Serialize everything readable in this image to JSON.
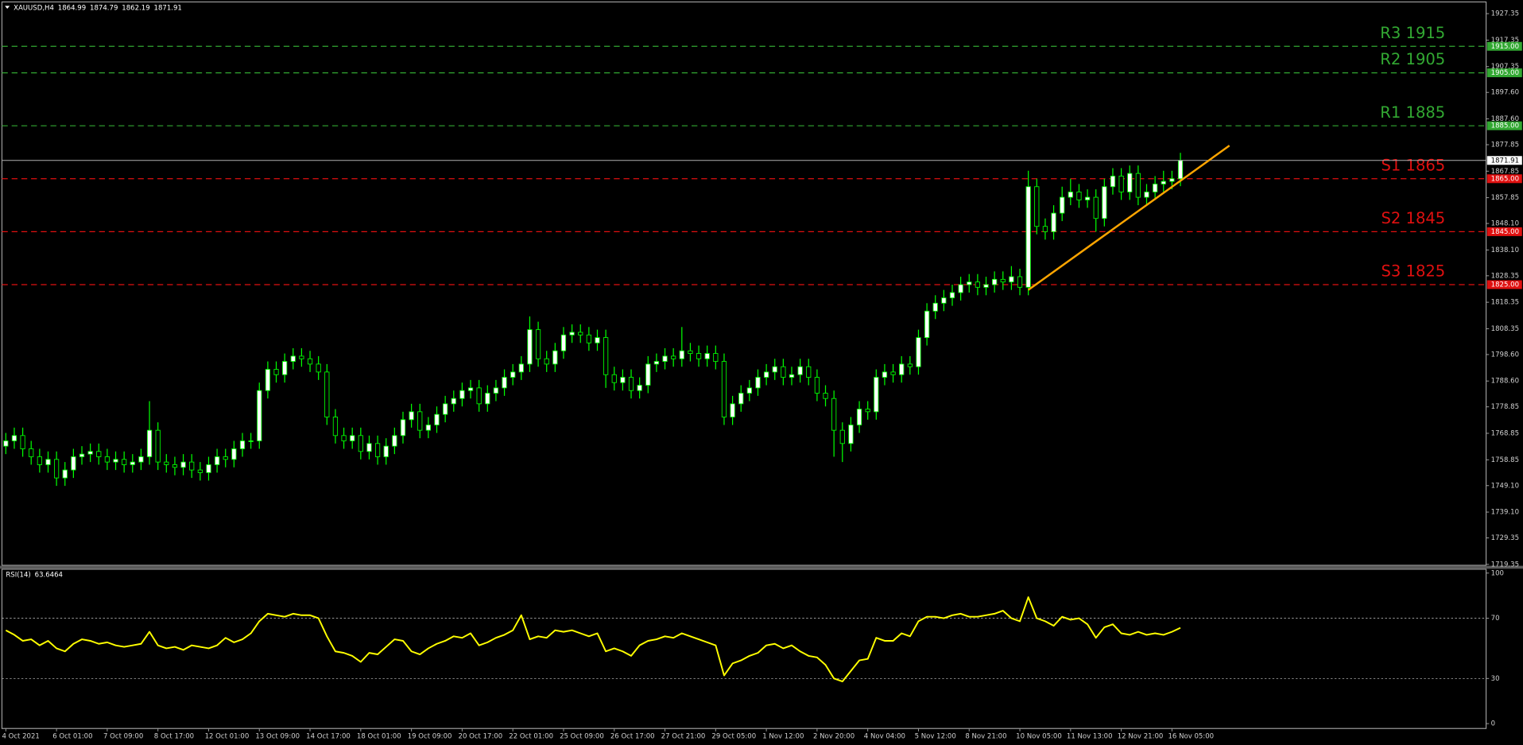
{
  "chart_data": [
    {
      "type": "candlestick",
      "title": "XAUUSD,H4",
      "categories": [
        "4 Oct 2021",
        null,
        null,
        null,
        null,
        null,
        "6 Oct 01:00",
        null,
        null,
        null,
        null,
        null,
        "7 Oct 09:00",
        null,
        null,
        null,
        null,
        null,
        "8 Oct 17:00",
        null,
        null,
        null,
        null,
        null,
        "12 Oct 01:00",
        null,
        null,
        null,
        null,
        null,
        "13 Oct 09:00",
        null,
        null,
        null,
        null,
        null,
        "14 Oct 17:00",
        null,
        null,
        null,
        null,
        null,
        "18 Oct 01:00",
        null,
        null,
        null,
        null,
        null,
        "19 Oct 09:00",
        null,
        null,
        null,
        null,
        null,
        "20 Oct 17:00",
        null,
        null,
        null,
        null,
        null,
        "22 Oct 01:00",
        null,
        null,
        null,
        null,
        null,
        "25 Oct 09:00",
        null,
        null,
        null,
        null,
        null,
        "26 Oct 17:00",
        null,
        null,
        null,
        null,
        null,
        "27 Oct 21:00",
        null,
        null,
        null,
        null,
        null,
        "29 Oct 05:00",
        null,
        null,
        null,
        null,
        null,
        "1 Nov 12:00",
        null,
        null,
        null,
        null,
        null,
        "2 Nov 20:00",
        null,
        null,
        null,
        null,
        null,
        "4 Nov 04:00",
        null,
        null,
        null,
        null,
        null,
        "5 Nov 12:00",
        null,
        null,
        null,
        null,
        null,
        "8 Nov 21:00",
        null,
        null,
        null,
        null,
        null,
        "10 Nov 05:00",
        null,
        null,
        null,
        null,
        null,
        "11 Nov 13:00",
        null,
        null,
        null,
        null,
        null,
        "12 Nov 21:00",
        null,
        null,
        null,
        null,
        null,
        "16 Nov 05:00",
        null
      ],
      "open": [
        1764,
        1766,
        1768,
        1763,
        1760,
        1757,
        1759,
        1752,
        1755,
        1760,
        1761,
        1762,
        1760,
        1758,
        1759,
        1757,
        1758,
        1760,
        1770,
        1758,
        1757,
        1756,
        1758,
        1755,
        1754,
        1757,
        1760,
        1759,
        1763,
        1766,
        1766,
        1785,
        1793,
        1791,
        1796,
        1798,
        1797,
        1795,
        1792,
        1775,
        1768,
        1766,
        1768,
        1762,
        1765,
        1760,
        1764,
        1768,
        1774,
        1777,
        1770,
        1772,
        1776,
        1780,
        1782,
        1785,
        1786,
        1780,
        1784,
        1786,
        1790,
        1792,
        1795,
        1808,
        1797,
        1795,
        1800,
        1806,
        1807,
        1806,
        1803,
        1805,
        1791,
        1788,
        1790,
        1785,
        1787,
        1795,
        1796,
        1798,
        1797,
        1800,
        1799,
        1797,
        1799,
        1796,
        1775,
        1780,
        1784,
        1786,
        1790,
        1792,
        1794,
        1790,
        1791,
        1794,
        1790,
        1784,
        1782,
        1770,
        1765,
        1772,
        1778,
        1777,
        1790,
        1792,
        1791,
        1795,
        1794,
        1805,
        1815,
        1818,
        1820,
        1822,
        1825,
        1826,
        1824,
        1825,
        1827,
        1826,
        1828,
        1824,
        1862,
        1847,
        1845,
        1852,
        1858,
        1860,
        1857,
        1858,
        1850,
        1862,
        1866,
        1860,
        1867,
        1858,
        1860,
        1863,
        1864,
        1864.99
      ],
      "high": [
        1769,
        1771,
        1771,
        1766,
        1763,
        1762,
        1762,
        1758,
        1763,
        1764,
        1765,
        1765,
        1763,
        1762,
        1762,
        1761,
        1763,
        1781,
        1773,
        1761,
        1760,
        1761,
        1761,
        1758,
        1760,
        1763,
        1763,
        1766,
        1769,
        1769,
        1788,
        1796,
        1796,
        1799,
        1801,
        1801,
        1800,
        1798,
        1795,
        1778,
        1771,
        1771,
        1771,
        1768,
        1768,
        1767,
        1771,
        1777,
        1780,
        1780,
        1775,
        1779,
        1783,
        1785,
        1788,
        1789,
        1789,
        1787,
        1789,
        1793,
        1795,
        1798,
        1813,
        1811,
        1800,
        1803,
        1809,
        1810,
        1810,
        1809,
        1808,
        1808,
        1794,
        1793,
        1793,
        1790,
        1798,
        1799,
        1801,
        1801,
        1809,
        1803,
        1802,
        1802,
        1802,
        1799,
        1783,
        1787,
        1789,
        1793,
        1795,
        1797,
        1797,
        1794,
        1797,
        1797,
        1793,
        1787,
        1785,
        1773,
        1775,
        1781,
        1781,
        1793,
        1795,
        1795,
        1798,
        1798,
        1808,
        1818,
        1821,
        1823,
        1825,
        1828,
        1829,
        1829,
        1828,
        1830,
        1830,
        1832,
        1831,
        1868,
        1865,
        1850,
        1855,
        1862,
        1865,
        1863,
        1861,
        1861,
        1865,
        1869,
        1869,
        1870,
        1870,
        1863,
        1866,
        1868,
        1868,
        1874.79
      ],
      "low": [
        1761,
        1763,
        1760,
        1757,
        1754,
        1754,
        1749,
        1749,
        1752,
        1757,
        1758,
        1757,
        1755,
        1755,
        1754,
        1754,
        1755,
        1757,
        1755,
        1754,
        1753,
        1753,
        1752,
        1751,
        1751,
        1754,
        1756,
        1756,
        1760,
        1763,
        1763,
        1782,
        1788,
        1788,
        1793,
        1794,
        1792,
        1789,
        1772,
        1765,
        1763,
        1763,
        1759,
        1759,
        1757,
        1757,
        1761,
        1765,
        1771,
        1767,
        1767,
        1769,
        1773,
        1777,
        1779,
        1782,
        1777,
        1777,
        1781,
        1783,
        1787,
        1789,
        1792,
        1794,
        1792,
        1792,
        1797,
        1803,
        1803,
        1800,
        1800,
        1786,
        1785,
        1785,
        1782,
        1782,
        1784,
        1792,
        1793,
        1794,
        1794,
        1796,
        1794,
        1794,
        1793,
        1772,
        1772,
        1777,
        1781,
        1783,
        1787,
        1789,
        1787,
        1787,
        1788,
        1787,
        1781,
        1779,
        1760,
        1758,
        1762,
        1769,
        1774,
        1774,
        1787,
        1788,
        1788,
        1791,
        1791,
        1802,
        1812,
        1815,
        1817,
        1819,
        1822,
        1821,
        1821,
        1822,
        1823,
        1823,
        1821,
        1821,
        1844,
        1842,
        1842,
        1849,
        1855,
        1854,
        1854,
        1845,
        1847,
        1859,
        1857,
        1857,
        1855,
        1855,
        1857,
        1860,
        1861,
        1862.19
      ],
      "close": [
        1766,
        1768,
        1763,
        1760,
        1757,
        1759,
        1752,
        1755,
        1760,
        1761,
        1762,
        1760,
        1758,
        1759,
        1757,
        1758,
        1760,
        1770,
        1758,
        1757,
        1756,
        1758,
        1755,
        1754,
        1757,
        1760,
        1759,
        1763,
        1766,
        1766,
        1785,
        1793,
        1791,
        1796,
        1798,
        1797,
        1795,
        1792,
        1775,
        1768,
        1766,
        1768,
        1762,
        1765,
        1760,
        1764,
        1768,
        1774,
        1777,
        1770,
        1772,
        1776,
        1780,
        1782,
        1785,
        1786,
        1780,
        1784,
        1786,
        1790,
        1792,
        1795,
        1808,
        1797,
        1795,
        1800,
        1806,
        1807,
        1806,
        1803,
        1805,
        1791,
        1788,
        1790,
        1785,
        1787,
        1795,
        1796,
        1798,
        1797,
        1800,
        1799,
        1797,
        1799,
        1796,
        1775,
        1780,
        1784,
        1786,
        1790,
        1792,
        1794,
        1790,
        1791,
        1794,
        1790,
        1784,
        1782,
        1770,
        1765,
        1772,
        1778,
        1777,
        1790,
        1792,
        1791,
        1795,
        1794,
        1805,
        1815,
        1818,
        1820,
        1822,
        1825,
        1826,
        1824,
        1825,
        1827,
        1826,
        1828,
        1824,
        1862,
        1847,
        1845,
        1852,
        1858,
        1860,
        1857,
        1858,
        1850,
        1862,
        1866,
        1860,
        1867,
        1858,
        1860,
        1863,
        1864,
        1865,
        1871.91
      ],
      "wick_color": "#00ff00",
      "up_color": "#ffffff",
      "down_color": "#000000",
      "ylim": [
        1719,
        1932.5
      ],
      "yticks": [
        1927.35,
        1917.35,
        1907.35,
        {
          "value": 1897.6,
          "label": "1897.60"
        },
        {
          "value": 1887.6,
          "label": "1887.60"
        },
        1877.85,
        1867.85,
        1857.85,
        {
          "value": 1848.1,
          "label": "1848.10"
        },
        {
          "value": 1838.1,
          "label": "1838.10"
        },
        1828.35,
        1818.35,
        1808.35,
        {
          "value": 1798.6,
          "label": "1798.60"
        },
        {
          "value": 1788.6,
          "label": "1788.60"
        },
        1778.85,
        1768.85,
        1758.85,
        {
          "value": 1749.1,
          "label": "1749.10"
        },
        {
          "value": 1739.1,
          "label": "1739.10"
        },
        1729.35,
        1719.35
      ],
      "grid": false,
      "levels": [
        {
          "name": "R3 1915",
          "value": 1915,
          "value_label": "1915.00",
          "color": "#32a832"
        },
        {
          "name": "R2 1905",
          "value": 1905,
          "value_label": "1905.00",
          "color": "#32a832"
        },
        {
          "name": "R1 1885",
          "value": 1885,
          "value_label": "1885.00",
          "color": "#32a832"
        },
        {
          "name": "S1 1865",
          "value": 1865,
          "value_label": "1865.00",
          "color": "#e01010"
        },
        {
          "name": "S2 1845",
          "value": 1845,
          "value_label": "1845.00",
          "color": "#e01010"
        },
        {
          "name": "S3 1825",
          "value": 1825,
          "value_label": "1825.00",
          "color": "#e01010"
        }
      ],
      "trendline": {
        "x": [
          121,
          144.8
        ],
        "y": [
          1823,
          1877.5
        ],
        "color": "#ffa500"
      }
    },
    {
      "type": "line",
      "title": "RSI(14)",
      "color": "#ffff00",
      "values": [
        62,
        59,
        55,
        56,
        52,
        55,
        50,
        48,
        53,
        56,
        55,
        53,
        54,
        52,
        51,
        52,
        53,
        61,
        52,
        50,
        51,
        49,
        52,
        51,
        50,
        52,
        57,
        54,
        56,
        60,
        68,
        73,
        72,
        71,
        73,
        72,
        72,
        70,
        58,
        48,
        47,
        45,
        41,
        47,
        46,
        51,
        56,
        55,
        48,
        46,
        50,
        53,
        55,
        58,
        57,
        60,
        52,
        54,
        57,
        59,
        62,
        72,
        56,
        58,
        57,
        62,
        61,
        62,
        60,
        58,
        60,
        48,
        50,
        48,
        45,
        52,
        55,
        56,
        58,
        57,
        60,
        58,
        56,
        54,
        52,
        32,
        40,
        42,
        45,
        47,
        52,
        53,
        50,
        52,
        48,
        45,
        44,
        39,
        30,
        28,
        35,
        42,
        43,
        57,
        55,
        55,
        60,
        58,
        68,
        71,
        71,
        70,
        72,
        73,
        71,
        71,
        72,
        73,
        75,
        70,
        68,
        84,
        70,
        68,
        65,
        71,
        69,
        70,
        66,
        57,
        64,
        66,
        60,
        59,
        61,
        59,
        60,
        59,
        61,
        63.6464
      ],
      "ylim": [
        0,
        100
      ],
      "yticks": [
        0,
        30,
        70,
        100
      ],
      "levels": [
        30,
        70
      ]
    }
  ]
}
